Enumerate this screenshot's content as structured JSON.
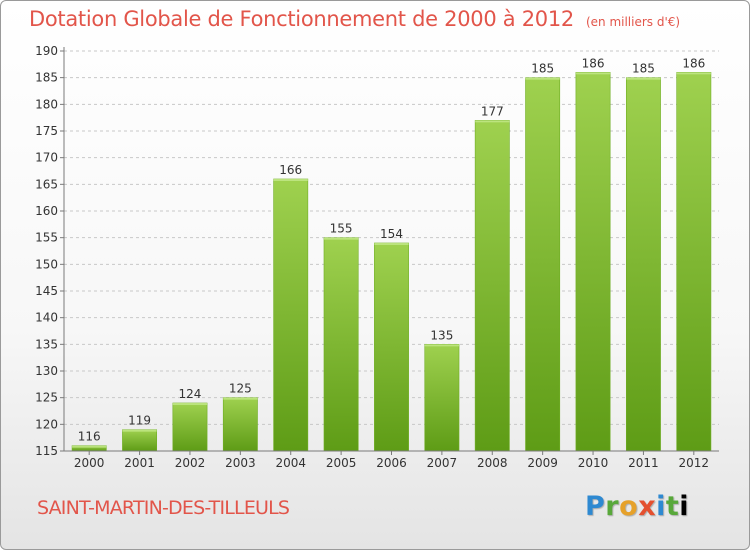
{
  "header": {
    "title": "Dotation Globale de Fonctionnement de 2000 à 2012",
    "unit": "(en milliers d'€)"
  },
  "footer": {
    "commune": "SAINT-MARTIN-DES-TILLEULS",
    "brand_letters": [
      "P",
      "r",
      "o",
      "x",
      "i",
      "t",
      "i"
    ]
  },
  "colors": {
    "title": "#e2554a",
    "bar_top": "#9fd14f",
    "bar_bottom": "#5e9c16",
    "axis": "#7a7a7a",
    "grid": "#c8c8c8"
  },
  "chart_data": {
    "type": "bar",
    "categories": [
      "2000",
      "2001",
      "2002",
      "2003",
      "2004",
      "2005",
      "2006",
      "2007",
      "2008",
      "2009",
      "2010",
      "2011",
      "2012"
    ],
    "values": [
      116,
      119,
      124,
      125,
      166,
      155,
      154,
      135,
      177,
      185,
      186,
      185,
      186
    ],
    "title": "Dotation Globale de Fonctionnement de 2000 à 2012",
    "xlabel": "",
    "ylabel": "",
    "ylim": [
      115,
      190
    ],
    "yticks": [
      115,
      120,
      125,
      130,
      135,
      140,
      145,
      150,
      155,
      160,
      165,
      170,
      175,
      180,
      185,
      190
    ],
    "grid": true,
    "data_labels": true
  }
}
